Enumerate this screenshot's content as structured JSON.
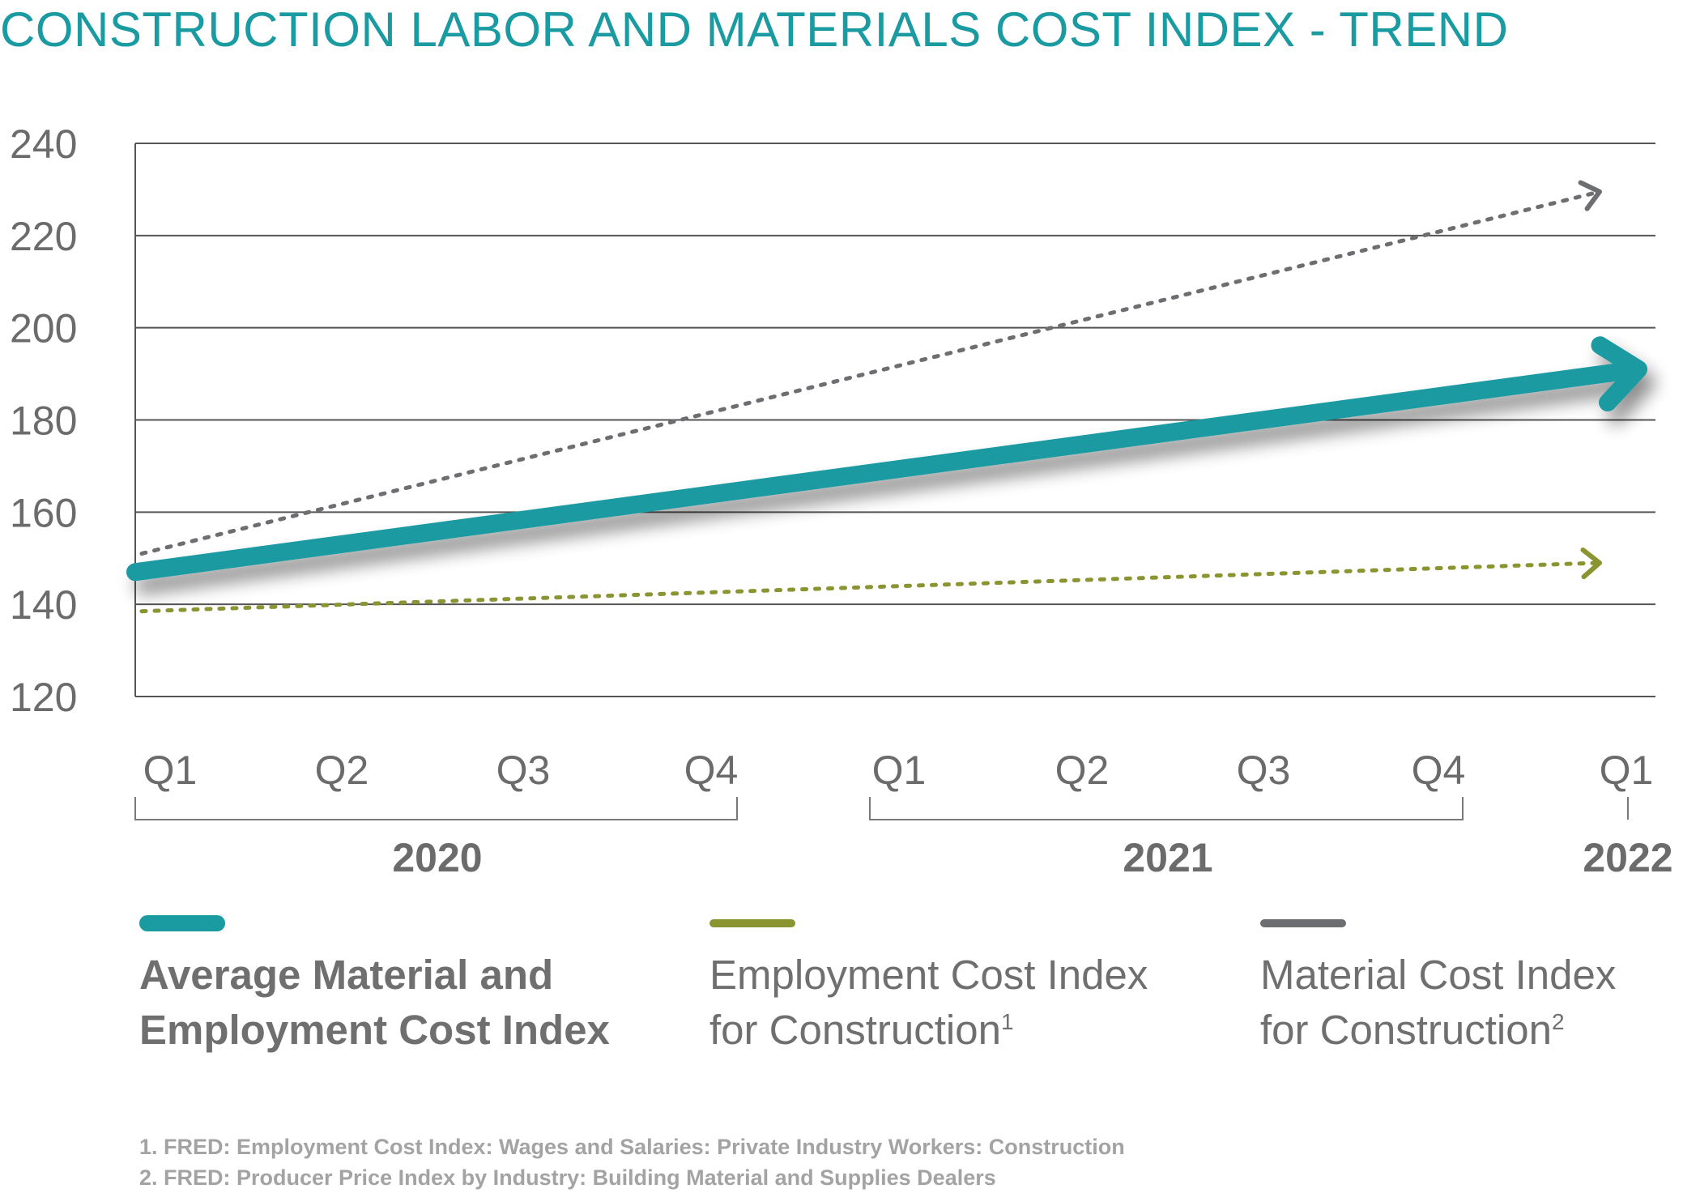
{
  "title": "CONSTRUCTION LABOR AND MATERIALS COST INDEX - TREND",
  "colors": {
    "average": "#1a9aa1",
    "employment": "#8a9431",
    "material": "#6d6e71",
    "grid": "#555555",
    "text": "#6b6b6b"
  },
  "chart_data": {
    "type": "line",
    "title": "CONSTRUCTION LABOR AND MATERIALS COST INDEX - TREND",
    "xlabel": "",
    "ylabel": "",
    "ylim": [
      120,
      240
    ],
    "yticks": [
      240,
      220,
      200,
      180,
      160,
      140,
      120
    ],
    "xlim": [
      0,
      8
    ],
    "categories": [
      "Q1",
      "Q2",
      "Q3",
      "Q4",
      "Q1",
      "Q2",
      "Q3",
      "Q4",
      "Q1"
    ],
    "years": [
      {
        "label": "2020",
        "from": 0,
        "to": 3
      },
      {
        "label": "2021",
        "from": 4,
        "to": 7
      },
      {
        "label": "2022",
        "from": 8,
        "to": 8
      }
    ],
    "series": [
      {
        "name": "Average Material and Employment Cost Index",
        "x": [
          0,
          8
        ],
        "values": [
          147,
          191
        ],
        "style": "solid-thick-arrow"
      },
      {
        "name": "Employment Cost Index for Construction",
        "x": [
          0,
          8
        ],
        "values": [
          138.5,
          149
        ],
        "style": "dotted-arrow"
      },
      {
        "name": "Material Cost Index for Construction",
        "x": [
          0,
          8
        ],
        "values": [
          151,
          229.5
        ],
        "style": "dotted-arrow"
      }
    ]
  },
  "legend": [
    {
      "line1": "Average Material and",
      "line2": "Employment Cost Index",
      "sup": ""
    },
    {
      "line1": "Employment Cost Index",
      "line2": "for Construction",
      "sup": "1"
    },
    {
      "line1": "Material Cost Index",
      "line2": "for Construction",
      "sup": "2"
    }
  ],
  "footnotes": [
    "1. FRED: Employment Cost Index: Wages and Salaries: Private Industry Workers: Construction",
    "2. FRED: Producer Price Index by Industry: Building Material and Supplies Dealers"
  ]
}
